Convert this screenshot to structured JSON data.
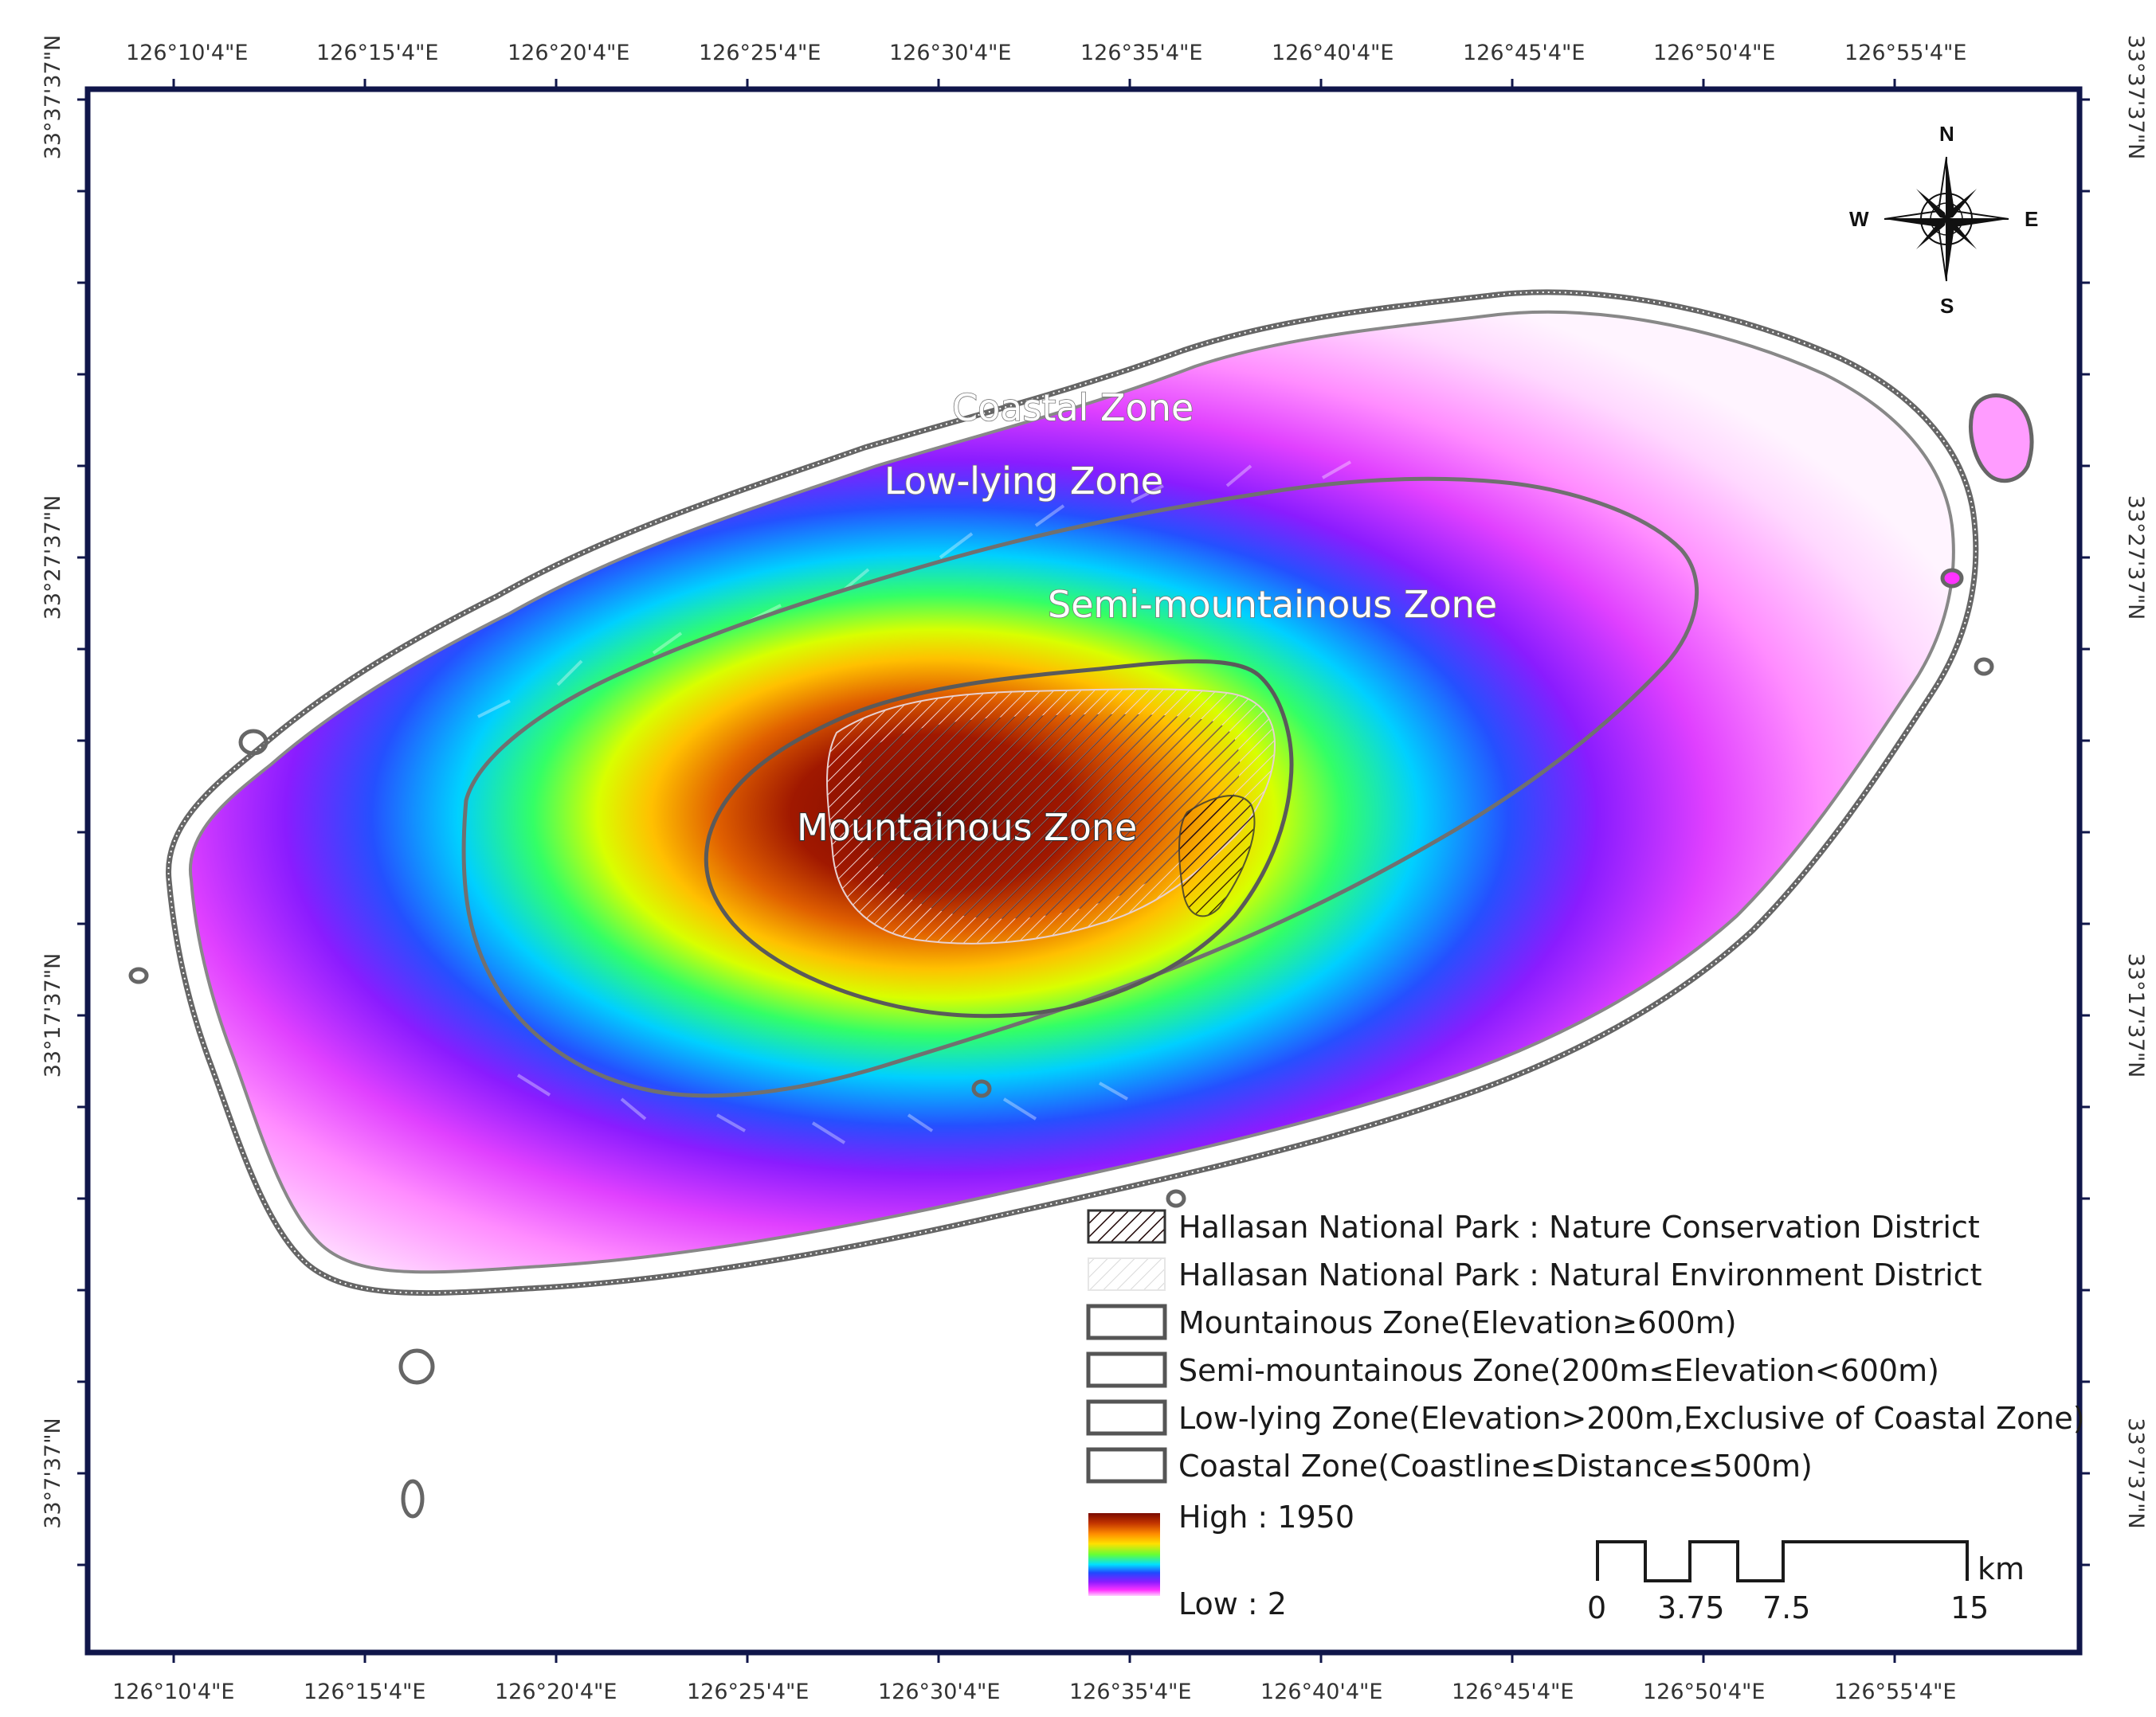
{
  "map": {
    "top_longitudes": [
      "126°10'4\"E",
      "126°15'4\"E",
      "126°20'4\"E",
      "126°25'4\"E",
      "126°30'4\"E",
      "126°35'4\"E",
      "126°40'4\"E",
      "126°45'4\"E",
      "126°50'4\"E",
      "126°55'4\"E"
    ],
    "bottom_longitudes": [
      "126°10'4\"E",
      "126°15'4\"E",
      "126°20'4\"E",
      "126°25'4\"E",
      "126°30'4\"E",
      "126°35'4\"E",
      "126°40'4\"E",
      "126°45'4\"E",
      "126°50'4\"E",
      "126°55'4\"E"
    ],
    "left_latitudes": [
      "33°37'37\"N",
      "33°27'37\"N",
      "33°17'37\"N",
      "33°7'37\"N"
    ],
    "right_latitudes": [
      "33°37'37\"N",
      "33°27'37\"N",
      "33°17'37\"N",
      "33°7'37\"N"
    ],
    "zone_labels": {
      "coastal": "Coastal Zone",
      "low_lying": "Low-lying Zone",
      "semi_mountainous": "Semi-mountainous Zone",
      "mountainous": "Mountainous Zone"
    },
    "compass": {
      "n": "N",
      "s": "S",
      "e": "E",
      "w": "W"
    },
    "legend": {
      "items": [
        "Hallasan National Park : Nature Conservation District",
        "Hallasan National Park : Natural Environment District",
        "Mountainous Zone(Elevation≥600m)",
        "Semi-mountainous Zone(200m≤Elevation<600m)",
        "Low-lying Zone(Elevation>200m,Exclusive of Coastal Zone)",
        "Coastal Zone(Coastline≤Distance≤500m)"
      ],
      "elevation_high": "High : 1950",
      "elevation_low": "Low : 2",
      "ramp_colors": [
        "#7a0a00",
        "#c23400",
        "#ff8c00",
        "#ffe000",
        "#66ff33",
        "#00e0ff",
        "#1f49ff",
        "#8a1cff",
        "#ff33ff",
        "#ffd0ff"
      ]
    },
    "scale_bar": {
      "unit": "km",
      "labels": [
        "0",
        "3.75",
        "7.5",
        "15"
      ]
    }
  }
}
